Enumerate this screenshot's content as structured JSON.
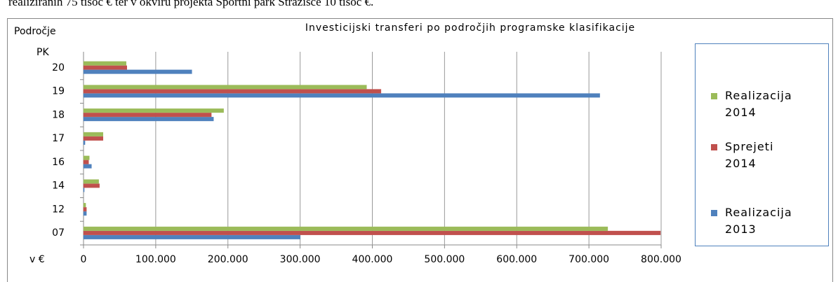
{
  "page_text": "realiziranih 75 tisoč € ter v okviru projekta Športni park Stražišče 10 tisoč €.",
  "chart_data": {
    "type": "bar",
    "orientation": "horizontal",
    "title": "Investicijski transferi po področjih programske klasifikacije",
    "y_label_line1": "Področje",
    "y_label_line2": "PK",
    "x_label": "v €",
    "categories": [
      "07",
      "12",
      "14",
      "16",
      "17",
      "18",
      "19",
      "20"
    ],
    "series": [
      {
        "name": "Realizacija 2013",
        "color": "#4f81bd",
        "values": [
          300000,
          4000,
          1000,
          11000,
          2000,
          180000,
          715000,
          150000
        ]
      },
      {
        "name": "Sprejeti 2014",
        "color": "#c0504d",
        "values": [
          799000,
          4000,
          22000,
          7000,
          27000,
          177000,
          412000,
          60000
        ]
      },
      {
        "name": "Realizacija 2014",
        "color": "#9bbb59",
        "values": [
          726000,
          3000,
          21000,
          8000,
          27000,
          194000,
          392000,
          59000
        ]
      }
    ],
    "xlim": [
      0,
      800000
    ],
    "xticks": [
      0,
      {
        "value": 100000,
        "label": "100.000"
      },
      {
        "value": 200000,
        "label": "200.000"
      },
      {
        "value": 300000,
        "label": "300.000"
      },
      {
        "value": 400000,
        "label": "400.000"
      },
      {
        "value": 500000,
        "label": "500.000"
      },
      {
        "value": 600000,
        "label": "600.000"
      },
      {
        "value": 700000,
        "label": "700.000"
      },
      {
        "value": 800000,
        "label": "800.000"
      }
    ],
    "grid": true,
    "legend": "right"
  }
}
